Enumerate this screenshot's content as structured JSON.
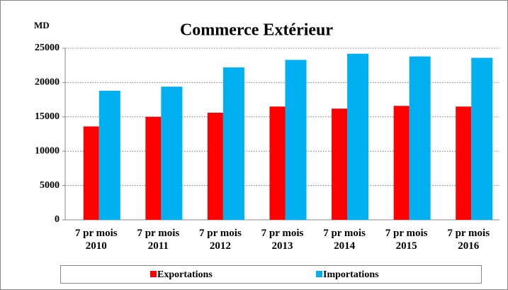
{
  "chart_data": {
    "type": "bar",
    "title": "Commerce Extérieur",
    "y_label": "MD",
    "categories": [
      "7 pr mois 2010",
      "7 pr mois 2011",
      "7 pr mois 2012",
      "7 pr mois 2013",
      "7 pr mois 2014",
      "7 pr mois 2015",
      "7 pr mois 2016"
    ],
    "series": [
      {
        "name": "Exportations",
        "color": "#ff0000",
        "values": [
          13600,
          15000,
          15600,
          16500,
          16200,
          16600,
          16500
        ]
      },
      {
        "name": "Importations",
        "color": "#00b0f0",
        "values": [
          18800,
          19400,
          22200,
          23300,
          24200,
          23800,
          23600
        ]
      }
    ],
    "ylim": [
      0,
      25000
    ],
    "yticks": [
      0,
      5000,
      10000,
      15000,
      20000,
      25000
    ],
    "grid": true,
    "legend": "bottom"
  }
}
